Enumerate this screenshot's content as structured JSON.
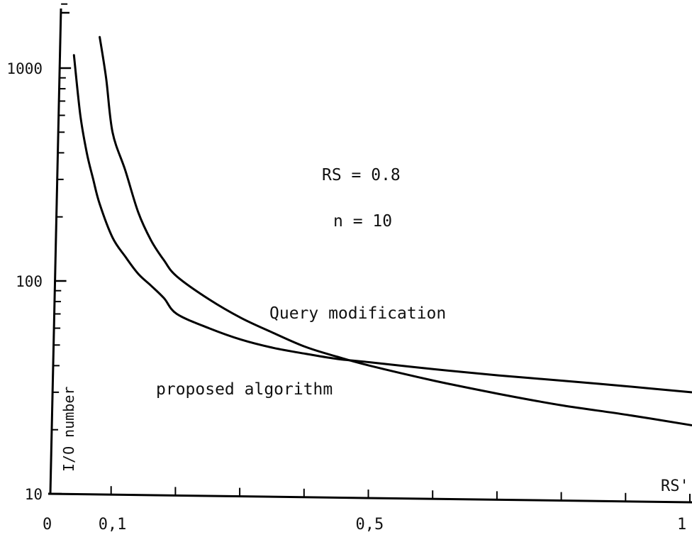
{
  "chart_data": {
    "type": "line",
    "xlabel": "RS'",
    "ylabel": "I/O number",
    "x_scale": "linear",
    "y_scale": "log",
    "xlim": [
      0,
      1
    ],
    "ylim": [
      10,
      2000
    ],
    "x_ticks": [
      0,
      0.1,
      0.2,
      0.3,
      0.4,
      0.5,
      0.6,
      0.7,
      0.8,
      0.9,
      1
    ],
    "x_tick_labels": [
      {
        "value": 0,
        "label": "0"
      },
      {
        "value": 0.1,
        "label": "0,1"
      },
      {
        "value": 0.5,
        "label": "0,5"
      },
      {
        "value": 1,
        "label": "1"
      }
    ],
    "y_tick_labels": [
      {
        "value": 10,
        "label": "10"
      },
      {
        "value": 100,
        "label": "100"
      },
      {
        "value": 1000,
        "label": "1000"
      }
    ],
    "annotations": [
      "RS = 0.8",
      "n = 10"
    ],
    "series": [
      {
        "name": "Query modification",
        "x": [
          0.08,
          0.09,
          0.1,
          0.12,
          0.14,
          0.16,
          0.18,
          0.2,
          0.25,
          0.3,
          0.35,
          0.4,
          0.45,
          0.5,
          0.6,
          0.7,
          0.8,
          0.9,
          1.0
        ],
        "y": [
          1400,
          900,
          500,
          330,
          210,
          155,
          125,
          105,
          82,
          67,
          57,
          49,
          44,
          40,
          34,
          29.5,
          26,
          23.5,
          21
        ]
      },
      {
        "name": "proposed algorithm",
        "x": [
          0.04,
          0.05,
          0.06,
          0.07,
          0.08,
          0.1,
          0.12,
          0.14,
          0.16,
          0.18,
          0.2,
          0.25,
          0.3,
          0.35,
          0.4,
          0.45,
          0.5,
          0.6,
          0.7,
          0.8,
          0.9,
          1.0
        ],
        "y": [
          1150,
          600,
          400,
          300,
          230,
          160,
          130,
          108,
          95,
          83,
          70,
          60,
          53,
          48.5,
          45.5,
          43,
          41.5,
          38.5,
          36,
          34,
          32,
          30
        ]
      }
    ]
  }
}
